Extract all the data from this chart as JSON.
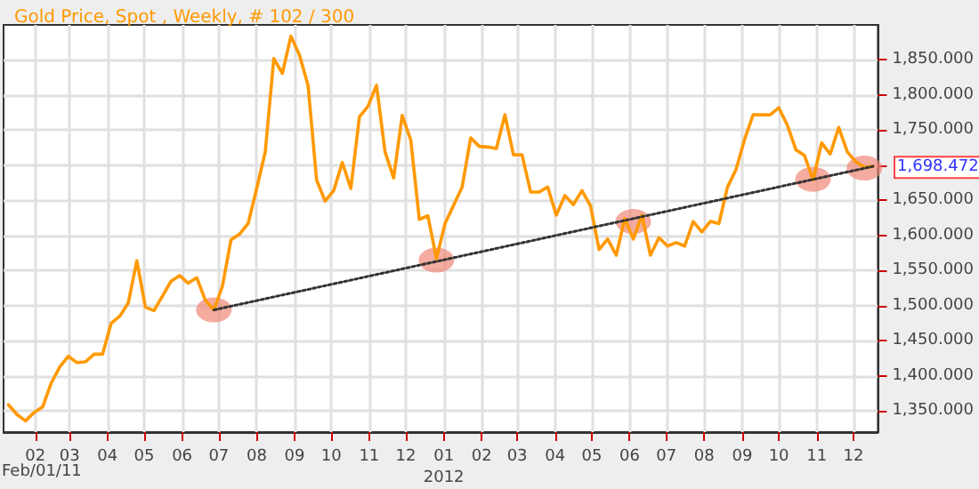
{
  "chart_data": {
    "type": "line",
    "title": "Gold Price, Spot , Weekly, # 102 / 300",
    "x": [
      "2011-01-10",
      "2011-01-17",
      "2011-01-24",
      "2011-01-31",
      "2011-02-07",
      "2011-02-14",
      "2011-02-21",
      "2011-02-28",
      "2011-03-07",
      "2011-03-14",
      "2011-03-21",
      "2011-03-28",
      "2011-04-04",
      "2011-04-11",
      "2011-04-18",
      "2011-04-25",
      "2011-05-02",
      "2011-05-09",
      "2011-05-16",
      "2011-05-23",
      "2011-05-30",
      "2011-06-06",
      "2011-06-13",
      "2011-06-20",
      "2011-06-27",
      "2011-07-04",
      "2011-07-11",
      "2011-07-18",
      "2011-07-25",
      "2011-08-01",
      "2011-08-08",
      "2011-08-15",
      "2011-08-22",
      "2011-08-29",
      "2011-09-05",
      "2011-09-12",
      "2011-09-19",
      "2011-09-26",
      "2011-10-03",
      "2011-10-10",
      "2011-10-17",
      "2011-10-24",
      "2011-10-31",
      "2011-11-07",
      "2011-11-14",
      "2011-11-21",
      "2011-11-28",
      "2011-12-05",
      "2011-12-12",
      "2011-12-19",
      "2011-12-26",
      "2012-01-02",
      "2012-01-09",
      "2012-01-16",
      "2012-01-23",
      "2012-01-30",
      "2012-02-06",
      "2012-02-13",
      "2012-02-20",
      "2012-02-27",
      "2012-03-05",
      "2012-03-12",
      "2012-03-19",
      "2012-03-26",
      "2012-04-02",
      "2012-04-09",
      "2012-04-16",
      "2012-04-23",
      "2012-04-30",
      "2012-05-07",
      "2012-05-14",
      "2012-05-21",
      "2012-05-28",
      "2012-06-04",
      "2012-06-11",
      "2012-06-18",
      "2012-06-25",
      "2012-07-02",
      "2012-07-09",
      "2012-07-16",
      "2012-07-23",
      "2012-07-30",
      "2012-08-06",
      "2012-08-13",
      "2012-08-20",
      "2012-08-27",
      "2012-09-03",
      "2012-09-10",
      "2012-09-17",
      "2012-09-24",
      "2012-10-01",
      "2012-10-08",
      "2012-10-15",
      "2012-10-22",
      "2012-10-29",
      "2012-11-05",
      "2012-11-12",
      "2012-11-19",
      "2012-11-26",
      "2012-12-03",
      "2012-12-10",
      "2012-12-17"
    ],
    "series": [
      {
        "color": "#ff9900",
        "marker": "none",
        "values": [
          1359,
          1345,
          1336,
          1348,
          1356,
          1390,
          1413,
          1428,
          1419,
          1420,
          1431,
          1431,
          1475,
          1485,
          1504,
          1564,
          1498,
          1493,
          1514,
          1535,
          1543,
          1532,
          1540,
          1508,
          1494,
          1528,
          1594,
          1602,
          1617,
          1667,
          1719,
          1852,
          1831,
          1884,
          1857,
          1814,
          1679,
          1649,
          1664,
          1704,
          1667,
          1769,
          1784,
          1814,
          1719,
          1682,
          1771,
          1736,
          1623,
          1628,
          1567,
          1617,
          1643,
          1669,
          1739,
          1727,
          1726,
          1724,
          1772,
          1715,
          1715,
          1662,
          1662,
          1669,
          1629,
          1657,
          1644,
          1664,
          1642,
          1580,
          1595,
          1572,
          1624,
          1595,
          1629,
          1572,
          1597,
          1585,
          1590,
          1585,
          1620,
          1605,
          1620,
          1617,
          1669,
          1694,
          1737,
          1772,
          1772,
          1772,
          1782,
          1757,
          1722,
          1714,
          1679,
          1732,
          1716,
          1754,
          1719,
          1705,
          1697,
          1698.472
        ]
      },
      {
        "type": "line",
        "color": "#333333",
        "line_style": "dotted",
        "marker": "none",
        "x": [
          "2011-06-27",
          "2012-12-17"
        ],
        "values": [
          1494,
          1698.472
        ]
      },
      {
        "type": "scatter",
        "color": "#f08878",
        "marker": "circle",
        "x": [
          "2011-06-27",
          "2011-12-26",
          "2012-06-04",
          "2012-10-29",
          "2012-12-10"
        ],
        "values": [
          1494,
          1565,
          1620,
          1680,
          1696
        ]
      }
    ],
    "annotations": [
      {
        "text": "1,698.472",
        "x": "2012-12-17",
        "y": 1698.472
      },
      "Feb/01/11"
    ],
    "xlim": [
      "2011-01-06",
      "2012-12-21"
    ],
    "xticks": [
      {
        "value": "2011-02-01",
        "label": "02"
      },
      {
        "value": "2011-03-01",
        "label": "03"
      },
      {
        "value": "2011-04-01",
        "label": "04"
      },
      {
        "value": "2011-05-01",
        "label": "05"
      },
      {
        "value": "2011-06-01",
        "label": "06"
      },
      {
        "value": "2011-07-01",
        "label": "07"
      },
      {
        "value": "2011-08-01",
        "label": "08"
      },
      {
        "value": "2011-09-01",
        "label": "09"
      },
      {
        "value": "2011-10-01",
        "label": "10"
      },
      {
        "value": "2011-11-01",
        "label": "11"
      },
      {
        "value": "2011-12-01",
        "label": "12"
      },
      {
        "value": "2012-01-01",
        "label": "01\n2012"
      },
      {
        "value": "2012-02-01",
        "label": "02"
      },
      {
        "value": "2012-03-01",
        "label": "03"
      },
      {
        "value": "2012-04-01",
        "label": "04"
      },
      {
        "value": "2012-05-01",
        "label": "05"
      },
      {
        "value": "2012-06-01",
        "label": "06"
      },
      {
        "value": "2012-07-01",
        "label": "07"
      },
      {
        "value": "2012-08-01",
        "label": "08"
      },
      {
        "value": "2012-09-01",
        "label": "09"
      },
      {
        "value": "2012-10-01",
        "label": "10"
      },
      {
        "value": "2012-11-01",
        "label": "11"
      },
      {
        "value": "2012-12-01",
        "label": "12"
      }
    ],
    "ylim": [
      1320,
      1900
    ],
    "yticks": [
      {
        "value": 1350,
        "label": "1,350.000"
      },
      {
        "value": 1400,
        "label": "1,400.000"
      },
      {
        "value": 1450,
        "label": "1,450.000"
      },
      {
        "value": 1500,
        "label": "1,500.000"
      },
      {
        "value": 1550,
        "label": "1,550.000"
      },
      {
        "value": 1600,
        "label": "1,600.000"
      },
      {
        "value": 1650,
        "label": "1,650.000"
      },
      {
        "value": 1700,
        "label": null
      },
      {
        "value": 1750,
        "label": "1,750.000"
      },
      {
        "value": 1800,
        "label": "1,800.000"
      },
      {
        "value": 1850,
        "label": "1,850.000"
      }
    ],
    "grid": true
  }
}
